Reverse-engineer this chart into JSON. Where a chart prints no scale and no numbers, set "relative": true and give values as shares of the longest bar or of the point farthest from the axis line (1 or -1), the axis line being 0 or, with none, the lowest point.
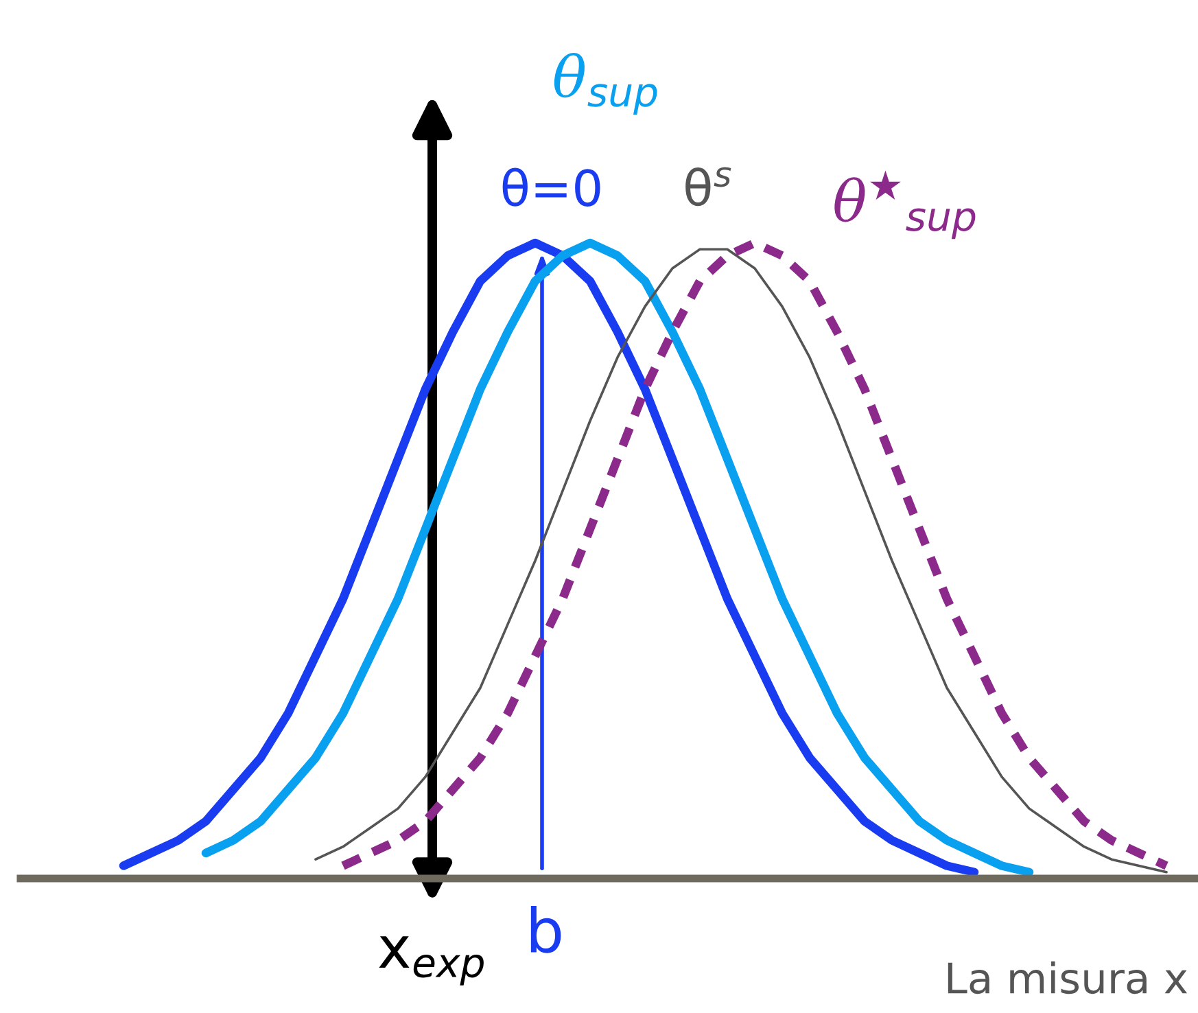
{
  "chart_data": {
    "type": "line",
    "relative": true,
    "legend": false,
    "grid": false,
    "marker": "none",
    "categories": [
      null,
      null,
      null,
      null,
      null,
      null,
      null,
      null,
      null,
      null,
      null,
      null,
      null,
      null,
      null,
      null,
      null,
      null,
      null,
      null,
      null,
      null,
      null,
      null,
      null,
      null,
      null,
      null,
      null,
      null,
      null,
      null,
      null,
      null,
      null,
      null,
      null,
      null,
      null,
      null
    ],
    "series": [
      {
        "name": "θ=0",
        "color": "#1a3cf0",
        "line_style": "solid",
        "values": [
          0.02,
          0.04,
          0.06,
          0.09,
          0.14,
          0.19,
          0.26,
          0.35,
          0.44,
          0.55,
          0.66,
          0.77,
          0.86,
          0.94,
          0.98,
          1,
          0.98,
          0.94,
          0.86,
          0.77,
          0.66,
          0.55,
          0.44,
          0.35,
          0.26,
          0.19,
          0.14,
          0.09,
          0.06,
          0.04,
          0.02,
          0.01,
          null,
          null,
          null,
          null,
          null,
          null,
          null,
          null
        ]
      },
      {
        "name": "θ$_{sup}$",
        "color": "#0aa0f0",
        "line_style": "solid",
        "values": [
          null,
          null,
          null,
          0.04,
          0.06,
          0.09,
          0.14,
          0.19,
          0.26,
          0.35,
          0.44,
          0.55,
          0.66,
          0.77,
          0.86,
          0.94,
          0.98,
          1,
          0.98,
          0.94,
          0.86,
          0.77,
          0.66,
          0.55,
          0.44,
          0.35,
          0.26,
          0.19,
          0.14,
          0.09,
          0.06,
          0.04,
          0.02,
          0.01,
          null,
          null,
          null,
          null,
          null,
          null
        ]
      },
      {
        "name": "θ$^{s}$",
        "color": "#555555",
        "line_style": "solid",
        "values": [
          null,
          null,
          null,
          null,
          null,
          null,
          null,
          0.03,
          0.05,
          0.08,
          0.11,
          0.16,
          0.23,
          0.3,
          0.4,
          0.5,
          0.61,
          0.72,
          0.82,
          0.9,
          0.96,
          0.99,
          0.99,
          0.96,
          0.9,
          0.82,
          0.72,
          0.61,
          0.5,
          0.4,
          0.3,
          0.23,
          0.16,
          0.11,
          0.08,
          0.05,
          0.03,
          0.02,
          0.01,
          null
        ]
      },
      {
        "name": "θ$^{★}$$_{sup}$",
        "color": "#8b2a8b",
        "line_style": "dashed",
        "values": [
          null,
          null,
          null,
          null,
          null,
          null,
          null,
          null,
          0.02,
          0.04,
          0.06,
          0.09,
          0.14,
          0.19,
          0.26,
          0.35,
          0.44,
          0.55,
          0.66,
          0.77,
          0.86,
          0.94,
          0.98,
          1,
          0.98,
          0.94,
          0.86,
          0.77,
          0.66,
          0.55,
          0.44,
          0.35,
          0.26,
          0.19,
          0.14,
          0.09,
          0.06,
          0.04,
          0.02,
          null
        ]
      }
    ],
    "annotations": [
      "x$_{exp}$",
      "b",
      "La misura x"
    ]
  }
}
